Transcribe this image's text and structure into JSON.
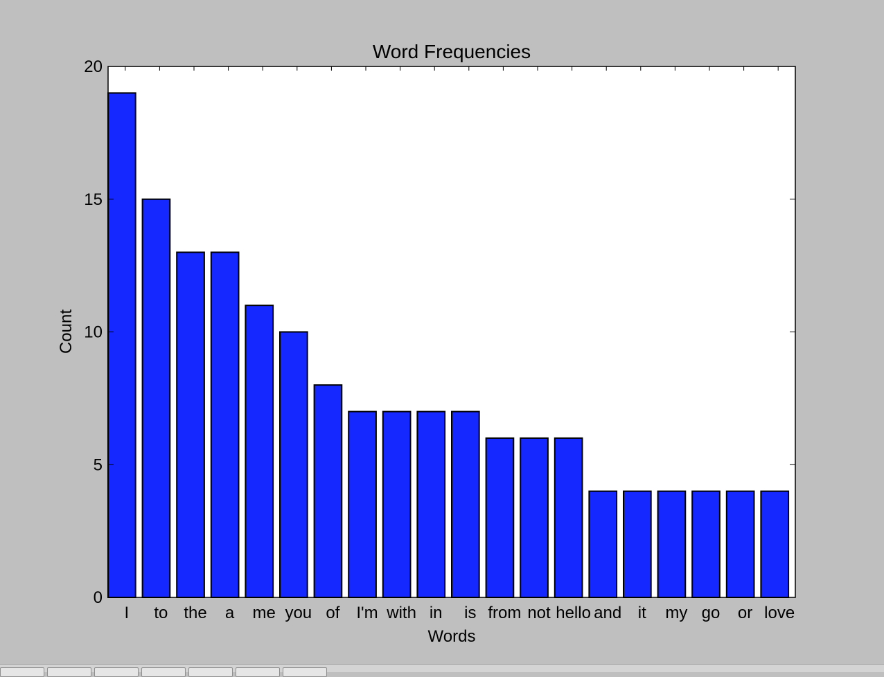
{
  "chart_data": {
    "type": "bar",
    "title": "Word Frequencies",
    "xlabel": "Words",
    "ylabel": "Count",
    "categories": [
      "I",
      "to",
      "the",
      "a",
      "me",
      "you",
      "of",
      "I'm",
      "with",
      "in",
      "is",
      "from",
      "not",
      "hello",
      "and",
      "it",
      "my",
      "go",
      "or",
      "love"
    ],
    "values": [
      19,
      15,
      13,
      13,
      11,
      10,
      8,
      7,
      7,
      7,
      7,
      6,
      6,
      6,
      4,
      4,
      4,
      4,
      4,
      4
    ],
    "ylim": [
      0,
      20
    ],
    "yticks": [
      "0",
      "5",
      "10",
      "15",
      "20"
    ],
    "grid": false,
    "colors": {
      "bar": "#1428ff",
      "edge": "#000000",
      "plot_bg": "#ffffff",
      "figure_bg": "#bfbfbf"
    }
  }
}
